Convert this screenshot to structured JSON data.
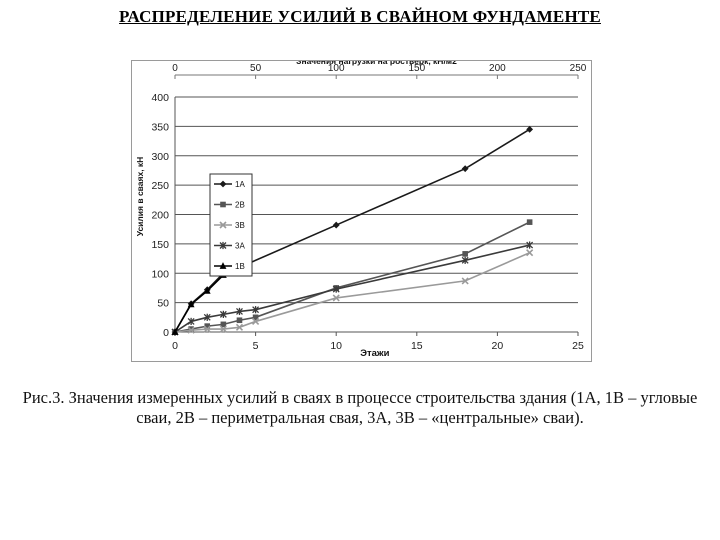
{
  "slide": {
    "title": "РАСПРЕДЕЛЕНИЕ УСИЛИЙ В СВАЙНОМ ФУНДАМЕНТЕ",
    "caption_line1": "Рис.3. Значения измеренных усилий в сваях в процессе строительства здания (1А, 1В – угловые",
    "caption_line2": "сваи, 2В – периметральная свая, 3А, 3В – «центральные» сваи)."
  },
  "chart_data": {
    "type": "line",
    "title": "",
    "xlabel": "Этажи",
    "ylabel": "Усилия в сваях, кН",
    "x2label": "Значения нагрузки на ростверк, кН/м2",
    "xlim": [
      0,
      25
    ],
    "ylim": [
      0,
      400
    ],
    "x2lim": [
      0,
      250
    ],
    "xticks": [
      0,
      5,
      10,
      15,
      20,
      25
    ],
    "yticks": [
      0,
      50,
      100,
      150,
      200,
      250,
      300,
      350,
      400
    ],
    "x2ticks": [
      0,
      50,
      100,
      150,
      200,
      250
    ],
    "grid": "horizontal",
    "legend_position": "left",
    "series": [
      {
        "name": "1A",
        "marker": "diamond",
        "color": "#1a1a1a",
        "x": [
          0,
          1,
          2,
          3,
          4,
          10,
          18,
          22
        ],
        "y": [
          0,
          48,
          72,
          100,
          110,
          182,
          278,
          345
        ]
      },
      {
        "name": "2B",
        "marker": "square",
        "color": "#555555",
        "x": [
          0,
          1,
          2,
          3,
          4,
          5,
          10,
          18,
          22
        ],
        "y": [
          0,
          5,
          10,
          13,
          20,
          25,
          75,
          133,
          187
        ]
      },
      {
        "name": "3B",
        "marker": "cross",
        "color": "#9a9a9a",
        "x": [
          0,
          1,
          2,
          3,
          4,
          5,
          10,
          18,
          22
        ],
        "y": [
          0,
          3,
          5,
          5,
          8,
          18,
          58,
          87,
          135
        ]
      },
      {
        "name": "3A",
        "marker": "star",
        "color": "#3a3a3a",
        "x": [
          0,
          1,
          2,
          3,
          4,
          5,
          10,
          18,
          22
        ],
        "y": [
          0,
          18,
          25,
          30,
          35,
          38,
          73,
          122,
          148
        ]
      },
      {
        "name": "1B",
        "marker": "triangle",
        "color": "#000000",
        "x": [
          0,
          1,
          2,
          3
        ],
        "y": [
          0,
          47,
          70,
          97
        ]
      }
    ]
  }
}
